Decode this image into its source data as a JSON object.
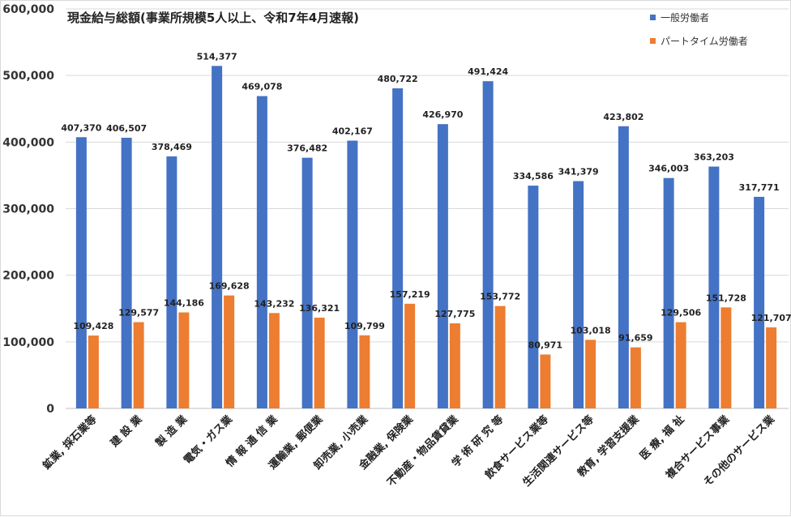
{
  "chart_data": {
    "type": "bar",
    "title": "現金給与総額(事業所規模5人以上、令和7年4月速報)",
    "xlabel": "",
    "ylabel": "",
    "ylim": [
      0,
      600000
    ],
    "yticks": [
      "0",
      "100,000",
      "200,000",
      "300,000",
      "400,000",
      "500,000",
      "600,000"
    ],
    "ytick_values": [
      0,
      100000,
      200000,
      300000,
      400000,
      500000,
      600000
    ],
    "grid": true,
    "legend_position": "top-right",
    "categories": [
      "鉱業, 採石業等",
      "建 設 業",
      "製 造 業",
      "電気・ガス業",
      "情 報 通 信 業",
      "運輸業, 郵便業",
      "卸売業, 小売業",
      "金融業, 保険業",
      "不動産・物品賃貸業",
      "学 術 研 究 等",
      "飲食サービス業等",
      "生活関連サービス等",
      "教育, 学習支援業",
      "医 療, 福 祉",
      "複合サービス事業",
      "その他のサービス業"
    ],
    "series": [
      {
        "name": "一般労働者",
        "color": "#4472C4",
        "values": [
          407370,
          406507,
          378469,
          514377,
          469078,
          376482,
          402167,
          480722,
          426970,
          491424,
          334586,
          341379,
          423802,
          346003,
          363203,
          317771
        ],
        "labels": [
          "407,370",
          "406,507",
          "378,469",
          "514,377",
          "469,078",
          "376,482",
          "402,167",
          "480,722",
          "426,970",
          "491,424",
          "334,586",
          "341,379",
          "423,802",
          "346,003",
          "363,203",
          "317,771"
        ]
      },
      {
        "name": "パートタイム労働者",
        "color": "#ED7D31",
        "values": [
          109428,
          129577,
          144186,
          169628,
          143232,
          136321,
          109799,
          157219,
          127775,
          153772,
          80971,
          103018,
          91659,
          129506,
          151728,
          121707
        ],
        "labels": [
          "109,428",
          "129,577",
          "144,186",
          "169,628",
          "143,232",
          "136,321",
          "109,799",
          "157,219",
          "127,775",
          "153,772",
          "80,971",
          "103,018",
          "91,659",
          "129,506",
          "151,728",
          "121,707"
        ]
      }
    ]
  }
}
